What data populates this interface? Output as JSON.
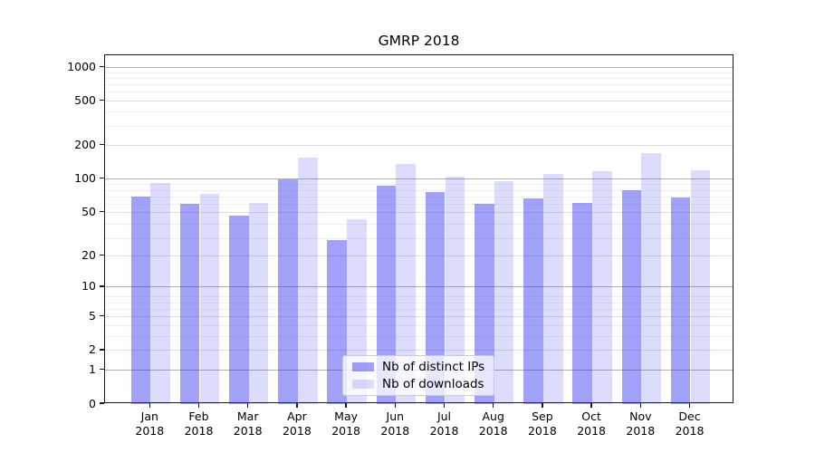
{
  "chart_data": {
    "type": "bar",
    "title": "GMRP 2018",
    "categories": [
      "Jan",
      "Feb",
      "Mar",
      "Apr",
      "May",
      "Jun",
      "Jul",
      "Aug",
      "Sep",
      "Oct",
      "Nov",
      "Dec"
    ],
    "category_year": "2018",
    "series": [
      {
        "name": "Nb of distinct IPs",
        "base_color": "#2f2fef",
        "alpha": 0.45,
        "values": [
          69,
          60,
          47,
          100,
          28,
          88,
          77,
          60,
          67,
          61,
          80,
          68
        ]
      },
      {
        "name": "Nb of downloads",
        "base_color": "#2f2fef",
        "alpha": 0.17,
        "values": [
          92,
          73,
          61,
          157,
          43,
          138,
          106,
          95,
          111,
          118,
          170,
          120
        ]
      }
    ],
    "yscale": "log1p",
    "yticks": [
      0,
      1,
      2,
      5,
      10,
      20,
      50,
      100,
      200,
      500,
      1000
    ],
    "major_grid_ticks": [
      1,
      10,
      100,
      1000
    ],
    "minor_grid_ticks": [
      2,
      5,
      20,
      50,
      200,
      500
    ],
    "ylim": [
      0,
      1290
    ],
    "grid": true,
    "legend_position": "lower center",
    "background_color": "#ffffff",
    "spine_color": "#1a1a1a"
  }
}
